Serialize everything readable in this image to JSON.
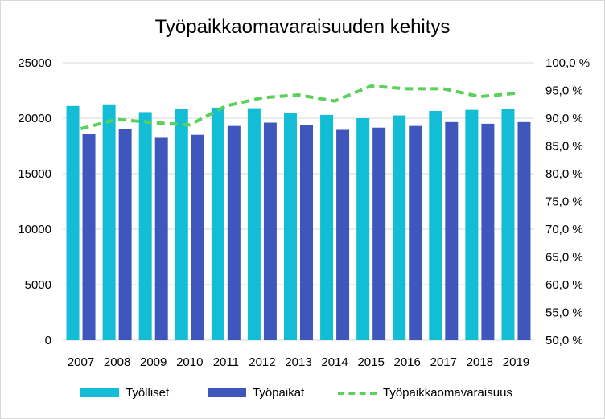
{
  "colors": {
    "tyolliset": "#13bdd6",
    "tyopaikat": "#3f56bd",
    "omavaraisuus": "#5bd05b",
    "grid": "#d9d9d9"
  },
  "chart_data": {
    "type": "bar",
    "title": "Työpaikkaomavaraisuuden kehitys",
    "categories": [
      "2007",
      "2008",
      "2009",
      "2010",
      "2011",
      "2012",
      "2013",
      "2014",
      "2015",
      "2016",
      "2017",
      "2018",
      "2019"
    ],
    "series": [
      {
        "name": "Työlliset",
        "type": "bar",
        "axis": "left",
        "color": "#13bdd6",
        "values": [
          21100,
          21250,
          20550,
          20800,
          20950,
          20900,
          20500,
          20300,
          20000,
          20250,
          20650,
          20750,
          20800
        ]
      },
      {
        "name": "Työpaikat",
        "type": "bar",
        "axis": "left",
        "color": "#3f56bd",
        "values": [
          18600,
          19050,
          18300,
          18500,
          19300,
          19600,
          19400,
          18950,
          19150,
          19300,
          19650,
          19500,
          19650
        ]
      },
      {
        "name": "Työpaikkaomavaraisuus",
        "type": "line",
        "style": "dashed",
        "axis": "right",
        "color": "#5bd05b",
        "values": [
          88.1,
          89.8,
          89.2,
          88.8,
          92.2,
          93.7,
          94.2,
          93.1,
          95.8,
          95.3,
          95.3,
          93.9,
          94.5
        ]
      }
    ],
    "y_left": {
      "min": 0,
      "max": 25000,
      "ticks": [
        "0",
        "5000",
        "10000",
        "15000",
        "20000",
        "25000"
      ]
    },
    "y_right": {
      "min": 50,
      "max": 100,
      "ticks": [
        "50,0 %",
        "55,0 %",
        "60,0 %",
        "65,0 %",
        "70,0 %",
        "75,0 %",
        "80,0 %",
        "85,0 %",
        "90,0 %",
        "95,0 %",
        "100,0 %"
      ]
    },
    "grid": true,
    "legend_position": "bottom"
  }
}
